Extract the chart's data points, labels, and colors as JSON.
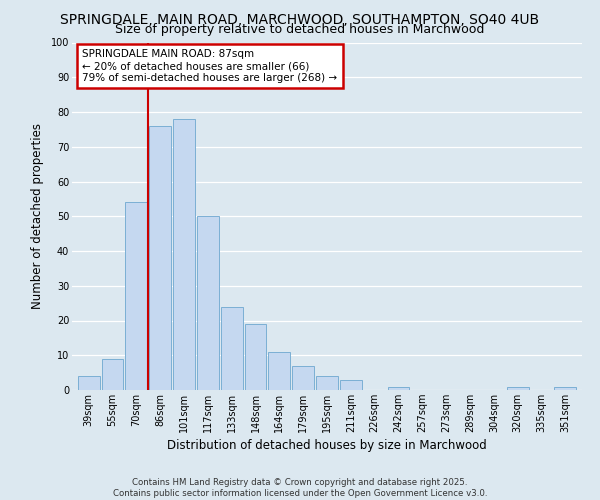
{
  "title": "SPRINGDALE, MAIN ROAD, MARCHWOOD, SOUTHAMPTON, SO40 4UB",
  "subtitle": "Size of property relative to detached houses in Marchwood",
  "xlabel": "Distribution of detached houses by size in Marchwood",
  "ylabel": "Number of detached properties",
  "categories": [
    "39sqm",
    "55sqm",
    "70sqm",
    "86sqm",
    "101sqm",
    "117sqm",
    "133sqm",
    "148sqm",
    "164sqm",
    "179sqm",
    "195sqm",
    "211sqm",
    "226sqm",
    "242sqm",
    "257sqm",
    "273sqm",
    "289sqm",
    "304sqm",
    "320sqm",
    "335sqm",
    "351sqm"
  ],
  "values": [
    4,
    9,
    54,
    76,
    78,
    50,
    24,
    19,
    11,
    7,
    4,
    3,
    0,
    1,
    0,
    0,
    0,
    0,
    1,
    0,
    1
  ],
  "bar_color": "#c5d8f0",
  "bar_edge_color": "#7bafd4",
  "vline_x_idx": 3,
  "vline_color": "#cc0000",
  "annotation_line1": "SPRINGDALE MAIN ROAD: 87sqm",
  "annotation_line2": "← 20% of detached houses are smaller (66)",
  "annotation_line3": "79% of semi-detached houses are larger (268) →",
  "annotation_box_color": "#ffffff",
  "annotation_box_edge": "#cc0000",
  "ylim": [
    0,
    100
  ],
  "yticks": [
    0,
    10,
    20,
    30,
    40,
    50,
    60,
    70,
    80,
    90,
    100
  ],
  "grid_color": "#d0dce8",
  "bg_color": "#dce8f0",
  "fig_bg_color": "#dce8f0",
  "title_fontsize": 10,
  "subtitle_fontsize": 9,
  "axis_label_fontsize": 8.5,
  "tick_fontsize": 7,
  "footer_line1": "Contains HM Land Registry data © Crown copyright and database right 2025.",
  "footer_line2": "Contains public sector information licensed under the Open Government Licence v3.0."
}
